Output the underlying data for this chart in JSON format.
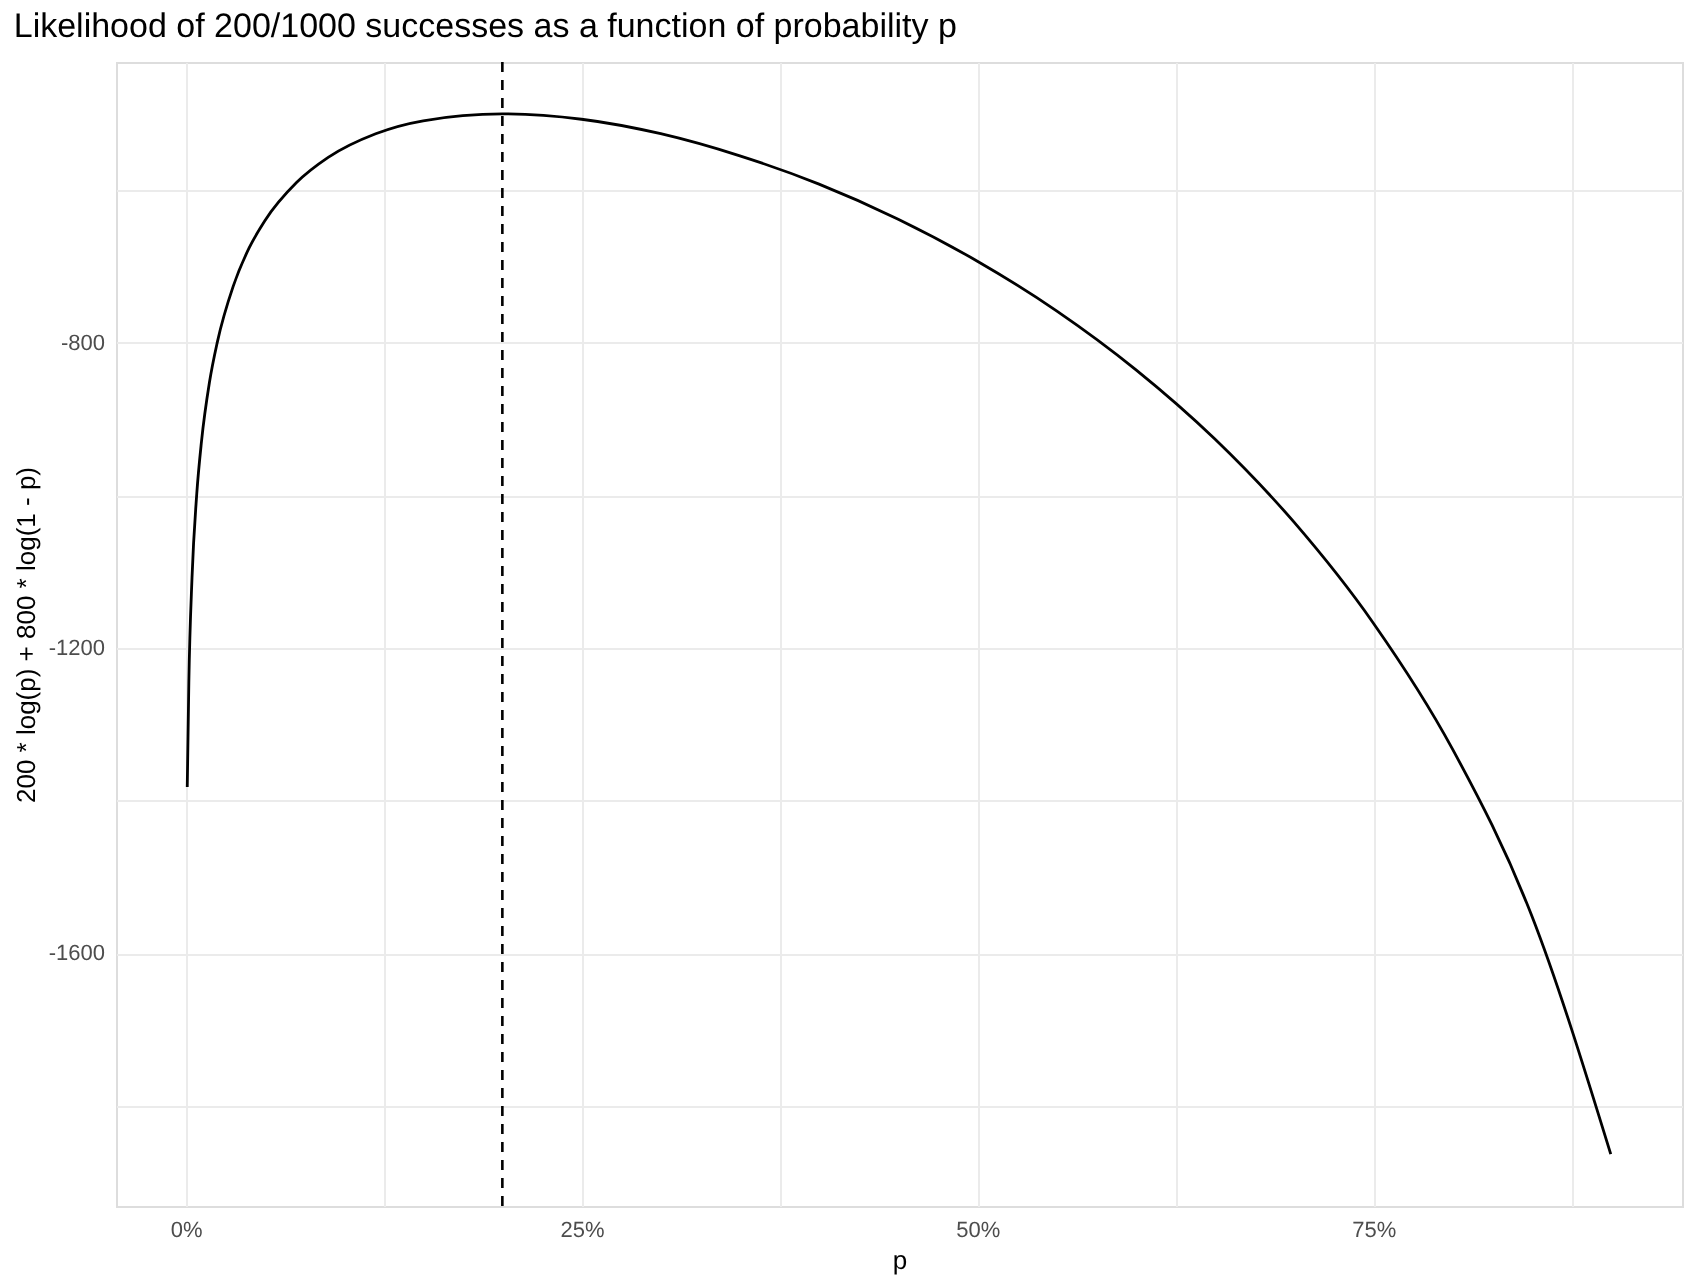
{
  "chart_data": {
    "type": "line",
    "title": "Likelihood of 200/1000 successes as a function of probability p",
    "xlabel": "p",
    "ylabel": "200 * log(p) + 800 * log(1 - p)",
    "x": [
      0.001,
      0.002,
      0.004,
      0.007,
      0.01,
      0.015,
      0.02,
      0.03,
      0.04,
      0.05,
      0.07,
      0.09,
      0.12,
      0.15,
      0.2,
      0.25,
      0.3,
      0.35,
      0.4,
      0.45,
      0.5,
      0.55,
      0.6,
      0.65,
      0.7,
      0.75,
      0.8,
      0.85,
      0.9
    ],
    "series": [
      {
        "color": "#000000",
        "values": [
          -1382,
          -1245,
          -1108,
          -998,
          -929,
          -852,
          -799,
          -726,
          -676,
          -640,
          -590,
          -557,
          -526,
          -509,
          -500,
          -507,
          -526,
          -555,
          -592,
          -638,
          -693,
          -758,
          -835,
          -926,
          -1035,
          -1167,
          -1332,
          -1550,
          -1863
        ]
      }
    ],
    "xlim": [
      -0.044,
      0.945
    ],
    "ylim": [
      -1931,
      -432
    ],
    "xticks": [
      {
        "value": 0,
        "label": "0%"
      },
      {
        "value": 0.125,
        "label": null
      },
      {
        "value": 0.25,
        "label": "25%"
      },
      {
        "value": 0.375,
        "label": null
      },
      {
        "value": 0.5,
        "label": "50%"
      },
      {
        "value": 0.625,
        "label": null
      },
      {
        "value": 0.75,
        "label": "75%"
      },
      {
        "value": 0.875,
        "label": null
      }
    ],
    "yticks": [
      {
        "value": -1800,
        "label": null
      },
      -1600,
      {
        "value": -1400,
        "label": null
      },
      -1200,
      {
        "value": -1000,
        "label": null
      },
      -800,
      {
        "value": -600,
        "label": null
      }
    ],
    "ref_lines": [
      {
        "axis": "x",
        "value": 0.2,
        "color": "#000000",
        "line_style": "dashed"
      }
    ],
    "grid": true,
    "marker": "none",
    "line_style": "solid"
  }
}
